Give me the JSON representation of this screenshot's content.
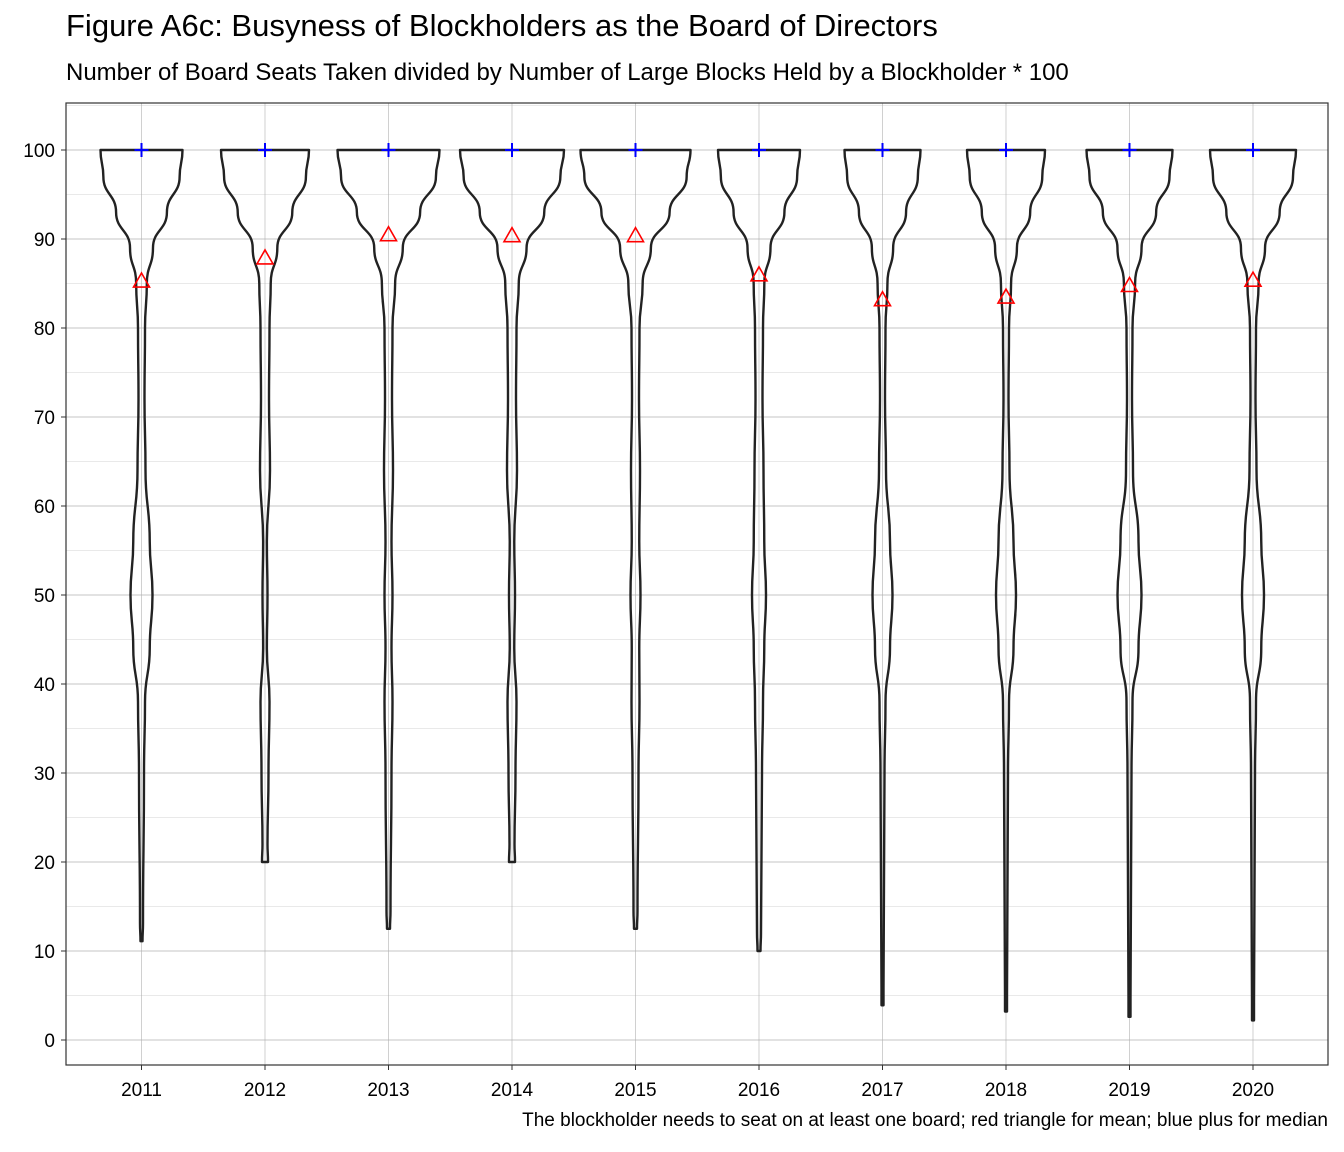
{
  "title": "Figure A6c: Busyness of Blockholders as the Board of Directors",
  "subtitle": "Number of Board Seats Taken divided by Number of Large Blocks Held by a Blockholder * 100",
  "caption": "The blockholder needs to seat on at least one board; red triangle for mean; blue plus for median",
  "chart_data": {
    "type": "violin",
    "title": "Figure A6c: Busyness of Blockholders as the Board of Directors",
    "subtitle": "Number of Board Seats Taken divided by Number of Large Blocks Held by a Blockholder * 100",
    "xlabel": "",
    "ylabel": "",
    "categories": [
      "2011",
      "2012",
      "2013",
      "2014",
      "2015",
      "2016",
      "2017",
      "2018",
      "2019",
      "2020"
    ],
    "y_ticks": [
      "0",
      "10",
      "20",
      "30",
      "40",
      "50",
      "60",
      "70",
      "80",
      "90",
      "100"
    ],
    "ylim": [
      -3,
      105
    ],
    "grid": true,
    "mean_marker": "red triangle",
    "median_marker": "blue plus",
    "colors": {
      "violin": "#222222",
      "mean": "#ff0000",
      "median": "#0000ff",
      "grid_major": "#b0b0b0",
      "grid_minor": "#e2e2e2"
    },
    "series": [
      {
        "year": "2011",
        "min": 11.1,
        "max": 100,
        "mean": 85.2,
        "median": 100
      },
      {
        "year": "2012",
        "min": 20.0,
        "max": 100,
        "mean": 87.8,
        "median": 100
      },
      {
        "year": "2013",
        "min": 12.5,
        "max": 100,
        "mean": 90.4,
        "median": 100
      },
      {
        "year": "2014",
        "min": 20.0,
        "max": 100,
        "mean": 90.3,
        "median": 100
      },
      {
        "year": "2015",
        "min": 12.5,
        "max": 100,
        "mean": 90.3,
        "median": 100
      },
      {
        "year": "2016",
        "min": 10.0,
        "max": 100,
        "mean": 85.9,
        "median": 100
      },
      {
        "year": "2017",
        "min": 3.9,
        "max": 100,
        "mean": 83.1,
        "median": 100
      },
      {
        "year": "2018",
        "min": 3.2,
        "max": 100,
        "mean": 83.4,
        "median": 100
      },
      {
        "year": "2019",
        "min": 2.6,
        "max": 100,
        "mean": 84.7,
        "median": 100
      },
      {
        "year": "2020",
        "min": 2.2,
        "max": 100,
        "mean": 85.3,
        "median": 100
      }
    ]
  }
}
